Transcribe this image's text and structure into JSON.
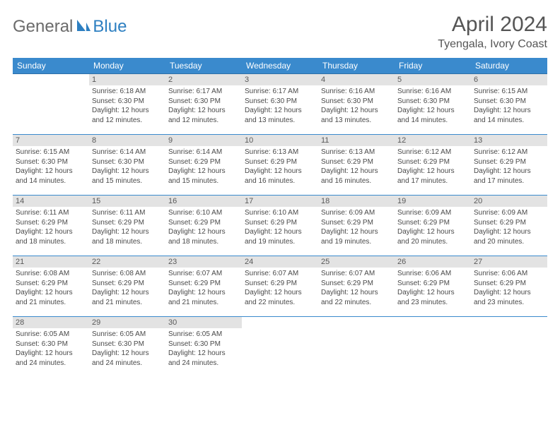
{
  "logo": {
    "text1": "General",
    "text2": "Blue"
  },
  "title": "April 2024",
  "location": "Tyengala, Ivory Coast",
  "colors": {
    "header_bg": "#3a8acd",
    "header_text": "#ffffff",
    "cell_border": "#3a8acd",
    "daynum_bg": "#e3e3e3",
    "text": "#4a4a4a",
    "logo_gray": "#6b6b6b",
    "logo_blue": "#2d7fc1"
  },
  "weekdays": [
    "Sunday",
    "Monday",
    "Tuesday",
    "Wednesday",
    "Thursday",
    "Friday",
    "Saturday"
  ],
  "days": [
    {
      "n": "",
      "sunrise": "",
      "sunset": "",
      "daylight": ""
    },
    {
      "n": "1",
      "sunrise": "6:18 AM",
      "sunset": "6:30 PM",
      "daylight": "12 hours and 12 minutes."
    },
    {
      "n": "2",
      "sunrise": "6:17 AM",
      "sunset": "6:30 PM",
      "daylight": "12 hours and 12 minutes."
    },
    {
      "n": "3",
      "sunrise": "6:17 AM",
      "sunset": "6:30 PM",
      "daylight": "12 hours and 13 minutes."
    },
    {
      "n": "4",
      "sunrise": "6:16 AM",
      "sunset": "6:30 PM",
      "daylight": "12 hours and 13 minutes."
    },
    {
      "n": "5",
      "sunrise": "6:16 AM",
      "sunset": "6:30 PM",
      "daylight": "12 hours and 14 minutes."
    },
    {
      "n": "6",
      "sunrise": "6:15 AM",
      "sunset": "6:30 PM",
      "daylight": "12 hours and 14 minutes."
    },
    {
      "n": "7",
      "sunrise": "6:15 AM",
      "sunset": "6:30 PM",
      "daylight": "12 hours and 14 minutes."
    },
    {
      "n": "8",
      "sunrise": "6:14 AM",
      "sunset": "6:30 PM",
      "daylight": "12 hours and 15 minutes."
    },
    {
      "n": "9",
      "sunrise": "6:14 AM",
      "sunset": "6:29 PM",
      "daylight": "12 hours and 15 minutes."
    },
    {
      "n": "10",
      "sunrise": "6:13 AM",
      "sunset": "6:29 PM",
      "daylight": "12 hours and 16 minutes."
    },
    {
      "n": "11",
      "sunrise": "6:13 AM",
      "sunset": "6:29 PM",
      "daylight": "12 hours and 16 minutes."
    },
    {
      "n": "12",
      "sunrise": "6:12 AM",
      "sunset": "6:29 PM",
      "daylight": "12 hours and 17 minutes."
    },
    {
      "n": "13",
      "sunrise": "6:12 AM",
      "sunset": "6:29 PM",
      "daylight": "12 hours and 17 minutes."
    },
    {
      "n": "14",
      "sunrise": "6:11 AM",
      "sunset": "6:29 PM",
      "daylight": "12 hours and 18 minutes."
    },
    {
      "n": "15",
      "sunrise": "6:11 AM",
      "sunset": "6:29 PM",
      "daylight": "12 hours and 18 minutes."
    },
    {
      "n": "16",
      "sunrise": "6:10 AM",
      "sunset": "6:29 PM",
      "daylight": "12 hours and 18 minutes."
    },
    {
      "n": "17",
      "sunrise": "6:10 AM",
      "sunset": "6:29 PM",
      "daylight": "12 hours and 19 minutes."
    },
    {
      "n": "18",
      "sunrise": "6:09 AM",
      "sunset": "6:29 PM",
      "daylight": "12 hours and 19 minutes."
    },
    {
      "n": "19",
      "sunrise": "6:09 AM",
      "sunset": "6:29 PM",
      "daylight": "12 hours and 20 minutes."
    },
    {
      "n": "20",
      "sunrise": "6:09 AM",
      "sunset": "6:29 PM",
      "daylight": "12 hours and 20 minutes."
    },
    {
      "n": "21",
      "sunrise": "6:08 AM",
      "sunset": "6:29 PM",
      "daylight": "12 hours and 21 minutes."
    },
    {
      "n": "22",
      "sunrise": "6:08 AM",
      "sunset": "6:29 PM",
      "daylight": "12 hours and 21 minutes."
    },
    {
      "n": "23",
      "sunrise": "6:07 AM",
      "sunset": "6:29 PM",
      "daylight": "12 hours and 21 minutes."
    },
    {
      "n": "24",
      "sunrise": "6:07 AM",
      "sunset": "6:29 PM",
      "daylight": "12 hours and 22 minutes."
    },
    {
      "n": "25",
      "sunrise": "6:07 AM",
      "sunset": "6:29 PM",
      "daylight": "12 hours and 22 minutes."
    },
    {
      "n": "26",
      "sunrise": "6:06 AM",
      "sunset": "6:29 PM",
      "daylight": "12 hours and 23 minutes."
    },
    {
      "n": "27",
      "sunrise": "6:06 AM",
      "sunset": "6:29 PM",
      "daylight": "12 hours and 23 minutes."
    },
    {
      "n": "28",
      "sunrise": "6:05 AM",
      "sunset": "6:30 PM",
      "daylight": "12 hours and 24 minutes."
    },
    {
      "n": "29",
      "sunrise": "6:05 AM",
      "sunset": "6:30 PM",
      "daylight": "12 hours and 24 minutes."
    },
    {
      "n": "30",
      "sunrise": "6:05 AM",
      "sunset": "6:30 PM",
      "daylight": "12 hours and 24 minutes."
    },
    {
      "n": "",
      "sunrise": "",
      "sunset": "",
      "daylight": ""
    },
    {
      "n": "",
      "sunrise": "",
      "sunset": "",
      "daylight": ""
    },
    {
      "n": "",
      "sunrise": "",
      "sunset": "",
      "daylight": ""
    },
    {
      "n": "",
      "sunrise": "",
      "sunset": "",
      "daylight": ""
    }
  ],
  "labels": {
    "sunrise": "Sunrise:",
    "sunset": "Sunset:",
    "daylight": "Daylight:"
  }
}
